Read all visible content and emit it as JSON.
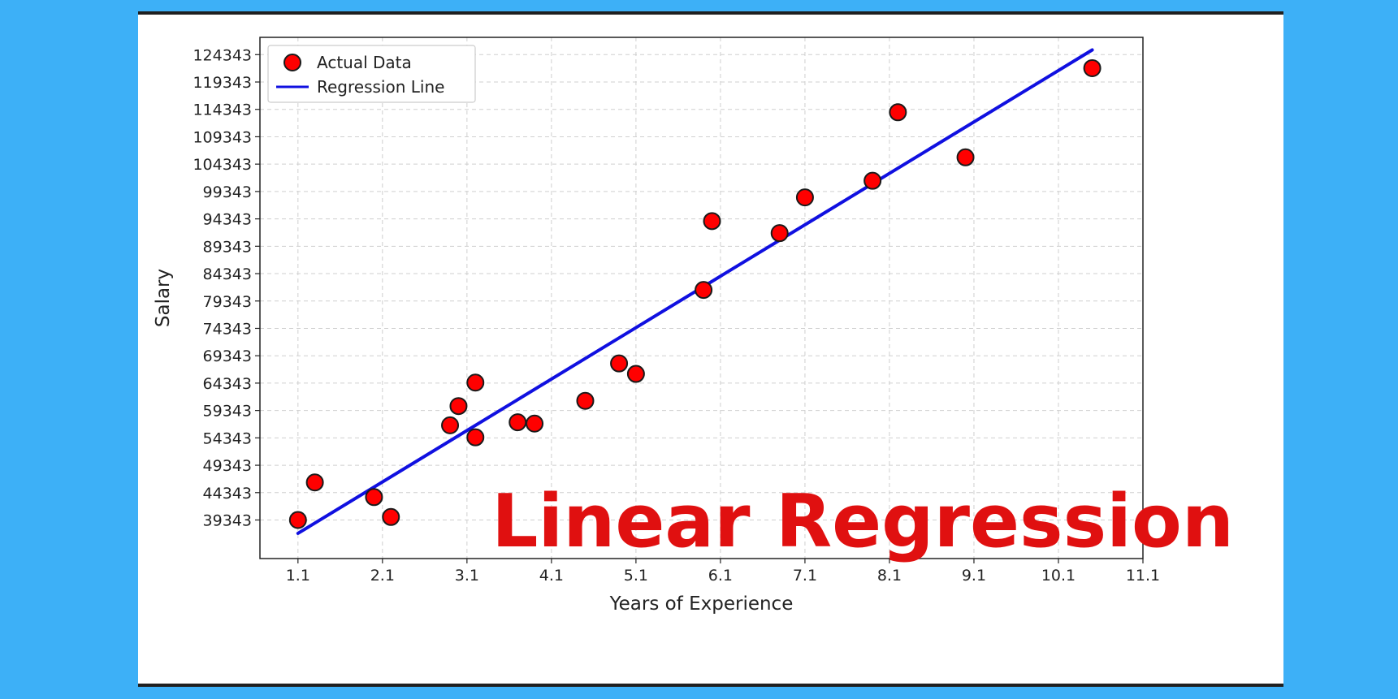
{
  "overlay_title": "Linear Regression",
  "colors": {
    "background": "#3db0f7",
    "points_fill": "#ff0000",
    "points_edge": "#1a1a1a",
    "line": "#1010e0",
    "overlay_title": "#e01010"
  },
  "chart_data": {
    "type": "scatter",
    "title": "",
    "xlabel": "Years of Experience",
    "ylabel": "Salary",
    "xlim": [
      0.65,
      11.1
    ],
    "ylim": [
      32300,
      127500
    ],
    "x_ticks": [
      "1.1",
      "2.1",
      "3.1",
      "4.1",
      "5.1",
      "6.1",
      "7.1",
      "8.1",
      "9.1",
      "10.1",
      "11.1"
    ],
    "y_ticks": [
      "39343",
      "44343",
      "49343",
      "54343",
      "59343",
      "64343",
      "69343",
      "74343",
      "79343",
      "84343",
      "89343",
      "94343",
      "99343",
      "104343",
      "109343",
      "114343",
      "119343",
      "124343"
    ],
    "grid": true,
    "legend_position": "top-left",
    "series": [
      {
        "name": "Actual Data",
        "type": "scatter",
        "x": [
          1.1,
          1.3,
          2.0,
          2.2,
          2.9,
          3.0,
          3.2,
          3.2,
          3.7,
          3.9,
          4.5,
          4.9,
          5.1,
          5.9,
          6.0,
          6.8,
          7.1,
          7.9,
          8.2,
          9.0,
          10.5
        ],
        "y": [
          39343,
          46205,
          43525,
          39891,
          56642,
          60150,
          54445,
          64445,
          57189,
          56957,
          61111,
          67938,
          66029,
          81363,
          93940,
          91738,
          98273,
          101302,
          113812,
          105582,
          121872
        ]
      },
      {
        "name": "Regression Line",
        "type": "line",
        "x": [
          1.1,
          10.5
        ],
        "y": [
          36900,
          125200
        ]
      }
    ]
  }
}
